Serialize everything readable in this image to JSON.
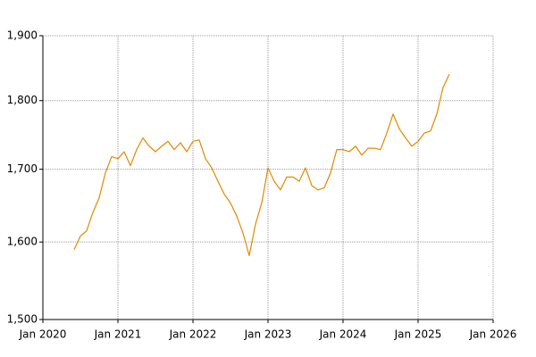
{
  "chart_data": {
    "type": "line",
    "log_y": true,
    "grid": true,
    "x": [
      "2020-06",
      "2020-07",
      "2020-08",
      "2020-09",
      "2020-10",
      "2020-11",
      "2020-12",
      "2021-01",
      "2021-02",
      "2021-03",
      "2021-04",
      "2021-05",
      "2021-06",
      "2021-07",
      "2021-08",
      "2021-09",
      "2021-10",
      "2021-11",
      "2021-12",
      "2022-01",
      "2022-02",
      "2022-03",
      "2022-04",
      "2022-05",
      "2022-06",
      "2022-07",
      "2022-08",
      "2022-09",
      "2022-10",
      "2022-11",
      "2022-12",
      "2023-01",
      "2023-02",
      "2023-03",
      "2023-04",
      "2023-05",
      "2023-06",
      "2023-07",
      "2023-08",
      "2023-09",
      "2023-10",
      "2023-11",
      "2023-12",
      "2024-01",
      "2024-02",
      "2024-03",
      "2024-04",
      "2024-05",
      "2024-06",
      "2024-07",
      "2024-08",
      "2024-09",
      "2024-10",
      "2024-11",
      "2024-12",
      "2025-01",
      "2025-02",
      "2025-03",
      "2025-04",
      "2025-05",
      "2025-06"
    ],
    "series": [
      {
        "color": "#e08a00",
        "values": [
          1590,
          1608,
          1615,
          1640,
          1660,
          1695,
          1718,
          1715,
          1725,
          1705,
          1728,
          1745,
          1733,
          1725,
          1733,
          1740,
          1728,
          1738,
          1725,
          1740,
          1742,
          1715,
          1702,
          1683,
          1665,
          1653,
          1635,
          1612,
          1582,
          1624,
          1653,
          1702,
          1683,
          1671,
          1689,
          1689,
          1683,
          1702,
          1677,
          1671,
          1674,
          1695,
          1728,
          1728,
          1725,
          1733,
          1720,
          1730,
          1730,
          1728,
          1752,
          1780,
          1758,
          1745,
          1733,
          1740,
          1752,
          1755,
          1780,
          1820,
          1840
        ]
      }
    ],
    "xlim": [
      "2020-01",
      "2026-01"
    ],
    "xticks": [
      {
        "value": "2020-01",
        "label": "Jan 2020"
      },
      {
        "value": "2021-01",
        "label": "Jan 2021"
      },
      {
        "value": "2022-01",
        "label": "Jan 2022"
      },
      {
        "value": "2023-01",
        "label": "Jan 2023"
      },
      {
        "value": "2024-01",
        "label": "Jan 2024"
      },
      {
        "value": "2025-01",
        "label": "Jan 2025"
      },
      {
        "value": "2026-01",
        "label": "Jan 2026"
      }
    ],
    "ylim": [
      1500,
      1900
    ],
    "yticks": [
      {
        "value": 1500,
        "label": "1,500"
      },
      {
        "value": 1600,
        "label": "1,600"
      },
      {
        "value": 1700,
        "label": "1,700"
      },
      {
        "value": 1800,
        "label": "1,800"
      },
      {
        "value": 1900,
        "label": "1,900"
      }
    ]
  }
}
